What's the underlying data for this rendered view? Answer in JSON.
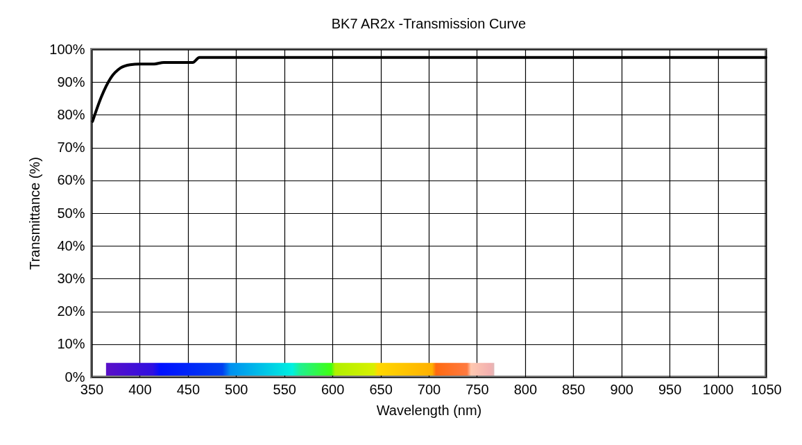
{
  "chart_data": {
    "type": "line",
    "title": "BK7 AR2x -Transmission Curve",
    "xlabel": "Wavelength (nm)",
    "ylabel": "Transmittance (%)",
    "x": [
      351,
      360,
      370,
      380,
      390,
      400,
      415,
      425,
      455,
      462,
      500,
      600,
      700,
      800,
      900,
      1000,
      1050
    ],
    "series": [
      {
        "color": "#000000",
        "values": [
          78,
          85.4,
          91.3,
          94.3,
          95.3,
          95.5,
          95.5,
          96,
          96,
          97.5,
          97.5,
          97.5,
          97.5,
          97.5,
          97.5,
          97.5,
          97.5
        ]
      }
    ],
    "xlim": [
      350,
      1050
    ],
    "xticks": [
      350,
      400,
      450,
      500,
      550,
      600,
      650,
      700,
      750,
      800,
      850,
      900,
      950,
      1000,
      1050
    ],
    "ylim": [
      0,
      100
    ],
    "yticks": [
      {
        "value": 0,
        "label": "0%"
      },
      {
        "value": 10,
        "label": "10%"
      },
      {
        "value": 20,
        "label": "20%"
      },
      {
        "value": 30,
        "label": "30%"
      },
      {
        "value": 40,
        "label": "40%"
      },
      {
        "value": 50,
        "label": "50%"
      },
      {
        "value": 60,
        "label": "60%"
      },
      {
        "value": 70,
        "label": "70%"
      },
      {
        "value": 80,
        "label": "80%"
      },
      {
        "value": 90,
        "label": "90%"
      },
      {
        "value": 100,
        "label": "100%"
      }
    ],
    "grid": true,
    "marker": "none",
    "line_style": "solid"
  }
}
